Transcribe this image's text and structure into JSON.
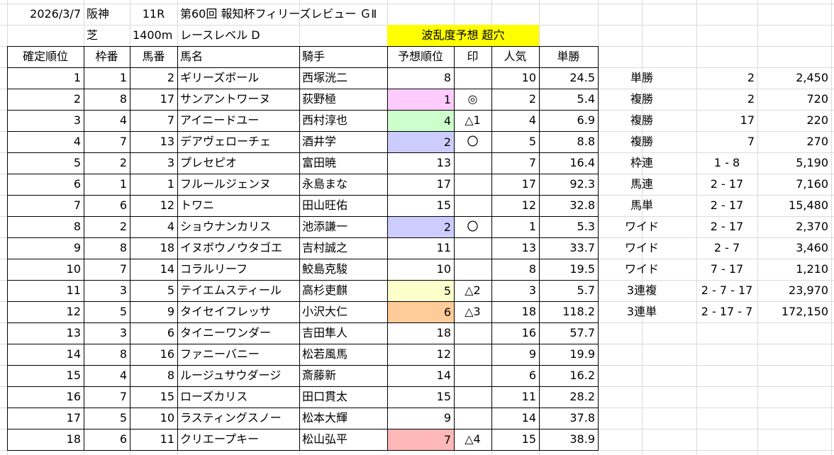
{
  "header": {
    "date": "2026/3/7",
    "venue": "阪神",
    "race": "11R",
    "name": "第60回 報知杯フィリーズレビュー ＧⅡ",
    "surface": "芝",
    "distance": "1400m",
    "level": "レースレベル D",
    "forecast": "波乱度予想 超穴"
  },
  "table": {
    "columns": [
      "確定順位",
      "枠番",
      "馬番",
      "馬名",
      "騎手",
      "予想順位",
      "印",
      "人気",
      "単勝"
    ],
    "rows": [
      [
        1,
        1,
        2,
        "ギリーズボール",
        "西塚洸二",
        8,
        null,
        10,
        24.5
      ],
      [
        2,
        8,
        17,
        "サンアントワーヌ",
        "荻野極",
        1,
        "◎",
        2,
        5.4
      ],
      [
        3,
        4,
        7,
        "アイニードユー",
        "西村淳也",
        4,
        "△1",
        4,
        6.9
      ],
      [
        4,
        7,
        13,
        "デアヴェローチェ",
        "酒井学",
        2,
        "〇",
        5,
        8.8
      ],
      [
        5,
        2,
        3,
        "プレセピオ",
        "富田暁",
        13,
        null,
        7,
        16.4
      ],
      [
        6,
        1,
        1,
        "フルールジェンヌ",
        "永島まな",
        17,
        null,
        17,
        92.3
      ],
      [
        7,
        6,
        12,
        "トワニ",
        "田山旺佑",
        15,
        null,
        12,
        32.8
      ],
      [
        8,
        2,
        4,
        "ショウナンカリス",
        "池添謙一",
        2,
        "〇",
        1,
        5.3
      ],
      [
        9,
        8,
        18,
        "イヌボウノウタゴエ",
        "吉村誠之",
        11,
        null,
        13,
        33.7
      ],
      [
        10,
        7,
        14,
        "コラルリーフ",
        "鮫島克駿",
        10,
        null,
        8,
        19.5
      ],
      [
        11,
        3,
        5,
        "テイエムスティール",
        "高杉吏麒",
        5,
        "△2",
        3,
        5.7
      ],
      [
        12,
        5,
        9,
        "タイセイフレッサ",
        "小沢大仁",
        6,
        "△3",
        18,
        118.2
      ],
      [
        13,
        3,
        6,
        "タイニーワンダー",
        "吉田隼人",
        18,
        null,
        16,
        57.7
      ],
      [
        14,
        8,
        16,
        "ファニーバニー",
        "松若風馬",
        12,
        null,
        9,
        19.9
      ],
      [
        15,
        4,
        8,
        "ルージュサウダージ",
        "斎藤新",
        14,
        null,
        6,
        16.2
      ],
      [
        16,
        7,
        15,
        "ローズカリス",
        "田口貫太",
        15,
        null,
        11,
        28.2
      ],
      [
        17,
        5,
        10,
        "ラスティングスノー",
        "松本大輝",
        9,
        null,
        14,
        37.8
      ],
      [
        18,
        6,
        11,
        "クリエープキー",
        "松山弘平",
        7,
        "△4",
        15,
        38.9
      ]
    ]
  },
  "payouts": [
    [
      "単勝",
      2,
      "2,450"
    ],
    [
      "複勝",
      2,
      "720"
    ],
    [
      "複勝",
      17,
      "220"
    ],
    [
      "複勝",
      7,
      "270"
    ],
    [
      "枠連",
      "1 - 8",
      "5,190"
    ],
    [
      "馬連",
      "2 - 17",
      "7,160"
    ],
    [
      "馬単",
      "2 - 17",
      "15,480"
    ],
    [
      "ワイド",
      "2 - 17",
      "2,370"
    ],
    [
      "ワイド",
      "2 - 7",
      "3,460"
    ],
    [
      "ワイド",
      "7 - 17",
      "1,210"
    ],
    [
      "3連複",
      "2 - 7 - 17",
      "23,970"
    ],
    [
      "3連単",
      "2 - 17 - 7",
      "172,150"
    ]
  ]
}
